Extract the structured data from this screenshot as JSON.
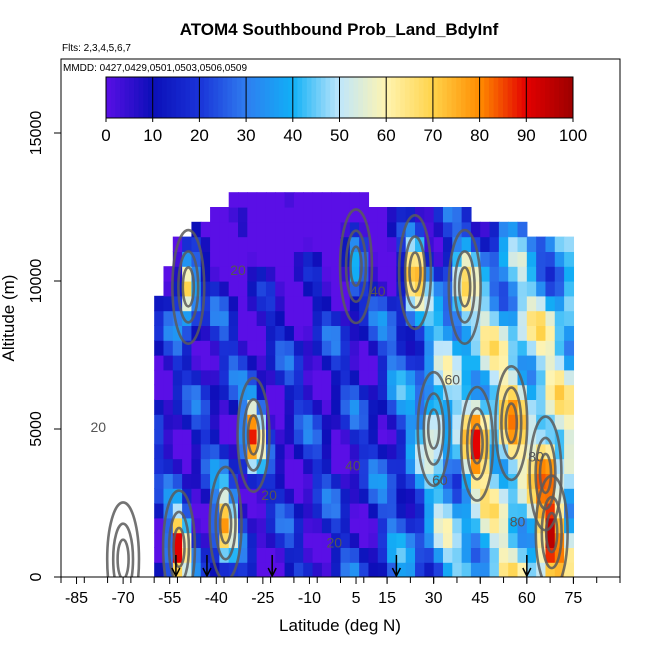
{
  "chart_data": {
    "type": "heatmap",
    "title": "ATOM4 Southbound Prob_Land_BdyInf",
    "flights_note": "Flts: 2,3,4,5,6,7",
    "dates_note": "MMDD: 0427,0429,0501,0503,0506,0509",
    "xlabel": "Latitude (deg N)",
    "ylabel": "Altitude (m)",
    "xlim": [
      -90,
      90
    ],
    "ylim": [
      0,
      17500
    ],
    "x_ticks": [
      -85,
      -70,
      -55,
      -40,
      -25,
      -10,
      5,
      15,
      30,
      45,
      60,
      75
    ],
    "y_ticks": [
      0,
      5000,
      10000,
      15000
    ],
    "colorbar": {
      "ticks": [
        0,
        10,
        20,
        30,
        40,
        50,
        60,
        70,
        80,
        90,
        100
      ],
      "colors": [
        "#5a0fe6",
        "#0b0fb8",
        "#1a33d8",
        "#2f7df0",
        "#10b0f6",
        "#bfe6fb",
        "#fff4b0",
        "#ffd34a",
        "#ff8c00",
        "#e40000",
        "#9c0000"
      ]
    },
    "grid": false,
    "contour_labels": [
      "20",
      "20",
      "20",
      "20",
      "40",
      "40",
      "60",
      "60",
      "80",
      "80"
    ],
    "flight_arrow_latitudes": [
      -53,
      -43,
      -22,
      18,
      60
    ],
    "field": {
      "lat_min": -90,
      "lat_max": 72,
      "lat_step": 3,
      "alt_step": 500,
      "column_tops": [
        0,
        0,
        0,
        0,
        0,
        0,
        0,
        0,
        0,
        0,
        9200,
        10200,
        11200,
        11200,
        11700,
        11700,
        12200,
        12200,
        12700,
        12700,
        12700,
        12700,
        12700,
        12700,
        12700,
        12700,
        12700,
        12700,
        12700,
        12700,
        12700,
        12700,
        12700,
        12200,
        12200,
        12200,
        12200,
        12200,
        12200,
        12200,
        12200,
        12200,
        12200,
        12200,
        11700,
        11700,
        11700,
        11700,
        11700,
        11700,
        11200,
        11200,
        11200,
        11200,
        11200
      ],
      "base_values": [
        0,
        0,
        0,
        0,
        0,
        0,
        0,
        0,
        0,
        0,
        12,
        12,
        14,
        10,
        12,
        14,
        15,
        16,
        14,
        12,
        11,
        10,
        11,
        10,
        11,
        12,
        12,
        13,
        12,
        12,
        12,
        13,
        13,
        15,
        18,
        22,
        24,
        28,
        30,
        34,
        38,
        40,
        40,
        44,
        46,
        48,
        48,
        50,
        50,
        52,
        50,
        50,
        50,
        50,
        50
      ],
      "hotspots": [
        {
          "lat": -52,
          "alt": 1000,
          "val": 95
        },
        {
          "lat": -37,
          "alt": 1800,
          "val": 80
        },
        {
          "lat": -28,
          "alt": 4800,
          "val": 90
        },
        {
          "lat": -49,
          "alt": 9800,
          "val": 72
        },
        {
          "lat": 24,
          "alt": 10300,
          "val": 85
        },
        {
          "lat": 44,
          "alt": 4500,
          "val": 92
        },
        {
          "lat": 55,
          "alt": 5200,
          "val": 82
        },
        {
          "lat": 66,
          "alt": 3500,
          "val": 88
        },
        {
          "lat": 68,
          "alt": 1500,
          "val": 98
        },
        {
          "lat": 5,
          "alt": 10500,
          "val": 42
        },
        {
          "lat": 30,
          "alt": 5000,
          "val": 60
        },
        {
          "lat": 40,
          "alt": 9800,
          "val": 70
        },
        {
          "lat": -70,
          "alt": 600,
          "val": 78
        }
      ]
    }
  }
}
